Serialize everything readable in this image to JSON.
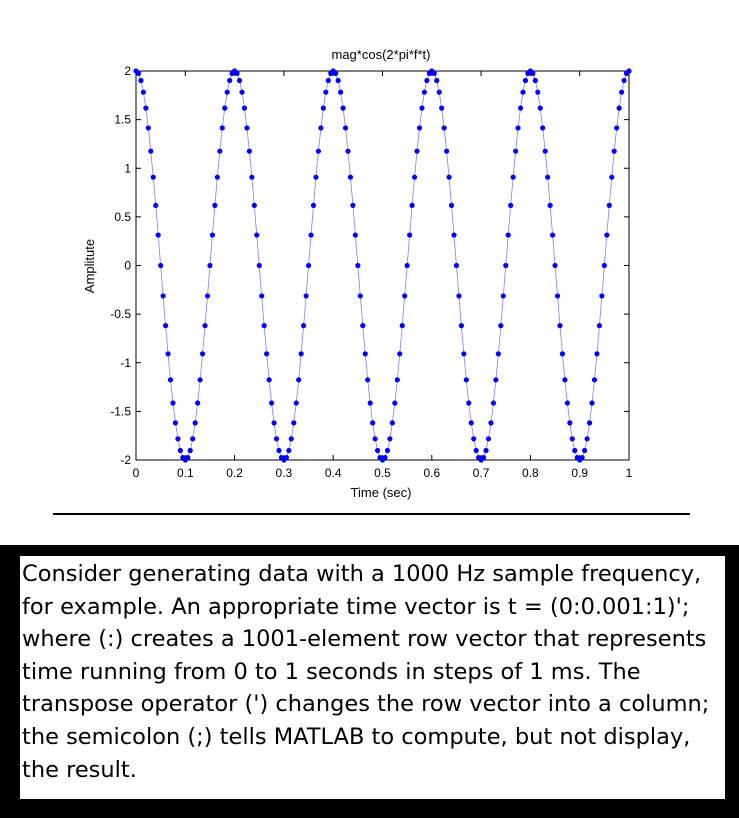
{
  "chart_data": {
    "type": "scatter",
    "title": "mag*cos(2*pi*f*t)",
    "xlabel": "Time (sec)",
    "ylabel": "Amplitute",
    "xlim": [
      0,
      1
    ],
    "ylim": [
      -2,
      2
    ],
    "xticks": [
      "0",
      "0.1",
      "0.2",
      "0.3",
      "0.4",
      "0.5",
      "0.6",
      "0.7",
      "0.8",
      "0.9",
      "1"
    ],
    "yticks": [
      "-2",
      "-1.5",
      "-1",
      "-0.5",
      "0",
      "0.5",
      "1",
      "1.5",
      "2"
    ],
    "grid": false,
    "series": [
      {
        "color": "#0000ff",
        "line_color": "#7f7fff",
        "marker": "dot",
        "amplitude": 2,
        "frequency_hz": 5,
        "x_start": 0,
        "x_step": 0.005,
        "x_end": 1
      }
    ]
  },
  "caption": "Consider generating data with a 1000 Hz sample frequency, for example. An appropriate time vector is t = (0:0.001:1)'; where (:) creates a 1001-element row vector that represents time running from 0 to 1 seconds in steps of 1 ms. The transpose operator (') changes the row vector into a column; the semicolon (;) tells MATLAB to compute, but not display, the result."
}
